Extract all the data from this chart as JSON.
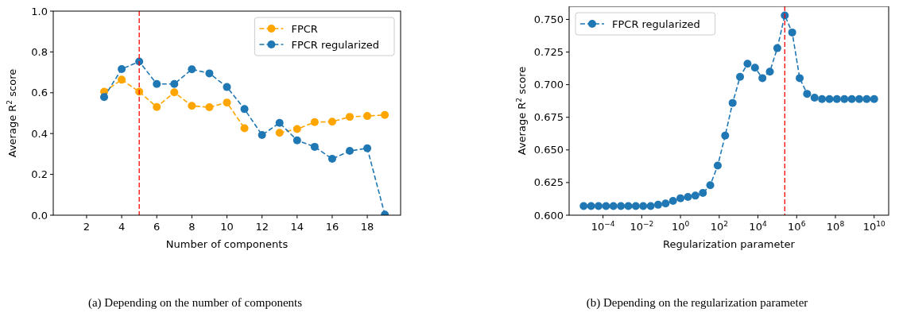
{
  "chart_data": [
    {
      "type": "line",
      "xlabel": "Number of components",
      "ylabel": "Average R$^{2}$ score",
      "annotations": [
        "(a)  Depending on the number of components"
      ],
      "x": [
        3,
        4,
        5,
        6,
        7,
        8,
        9,
        10,
        11,
        12,
        13,
        14,
        15,
        16,
        17,
        18,
        19
      ],
      "series": [
        {
          "name": "FPCR",
          "color": "#ffa500",
          "values": [
            0.605,
            0.664,
            0.605,
            0.53,
            0.602,
            0.536,
            0.529,
            0.552,
            0.426,
            null,
            0.404,
            0.422,
            0.456,
            0.458,
            0.482,
            0.486,
            0.491
          ]
        },
        {
          "name": "FPCR regularized",
          "color": "#1f77b4",
          "values": [
            0.579,
            0.716,
            0.753,
            0.643,
            0.643,
            0.715,
            0.695,
            0.628,
            0.52,
            0.393,
            0.452,
            0.367,
            0.335,
            0.276,
            0.315,
            0.328,
            0.003
          ]
        }
      ],
      "xlim": [
        0.1,
        19.9
      ],
      "ylim": [
        0,
        1
      ],
      "xticks": [
        2,
        4,
        6,
        8,
        10,
        12,
        14,
        16,
        18
      ],
      "yticks": [
        {
          "value": 0,
          "label": "0.0"
        },
        {
          "value": 0.2,
          "label": "0.2"
        },
        {
          "value": 0.4,
          "label": "0.4"
        },
        {
          "value": 0.6,
          "label": "0.6"
        },
        {
          "value": 0.8,
          "label": "0.8"
        },
        {
          "value": 1,
          "label": "1.0"
        }
      ],
      "ref_lines": [
        {
          "axis": "x",
          "value": 5,
          "label": null,
          "color": "#ff0000",
          "line_style": "dashed"
        }
      ],
      "legend": "top right",
      "marker": "circle",
      "line_style": "dashed"
    },
    {
      "type": "line",
      "xlabel": "Regularization parameter",
      "ylabel": "Average R$^{2}$ score",
      "annotations": [
        "(b)  Depending on the regularization parameter"
      ],
      "log": "x",
      "x": [
        1e-05,
        2.43e-05,
        5.87e-05,
        0.000143,
        0.000345,
        0.000838,
        0.00203,
        0.00492,
        0.0119,
        0.029,
        0.0702,
        0.17,
        0.412,
        1,
        2.43,
        5.87,
        14.3,
        34.5,
        83.8,
        203,
        492,
        1190,
        2900,
        7020,
        17000,
        41200,
        100000,
        243000,
        587000,
        1430000.0,
        3450000.0,
        8380000.0,
        20300000.0,
        49200000.0,
        119000000.0,
        290000000.0,
        702000000.0,
        1700000000.0,
        4120000000.0,
        10000000000.0
      ],
      "series": [
        {
          "name": "FPCR regularized",
          "color": "#1f77b4",
          "values": [
            0.607,
            0.607,
            0.607,
            0.607,
            0.607,
            0.607,
            0.607,
            0.607,
            0.607,
            0.607,
            0.608,
            0.609,
            0.611,
            0.613,
            0.614,
            0.615,
            0.617,
            0.623,
            0.638,
            0.661,
            0.686,
            0.706,
            0.716,
            0.713,
            0.705,
            0.71,
            0.728,
            0.753,
            0.74,
            0.705,
            0.693,
            0.69,
            0.689,
            0.689,
            0.689,
            0.689,
            0.689,
            0.689,
            0.689,
            0.689
          ]
        }
      ],
      "xlim": [
        1.78e-06,
        56200000000.0
      ],
      "ylim": [
        0.6,
        0.76
      ],
      "xticks": [
        {
          "value": 0.0001,
          "label": "10$^{−4}$"
        },
        {
          "value": 0.01,
          "label": "10$^{−2}$"
        },
        {
          "value": 1,
          "label": "10$^{0}$"
        },
        {
          "value": 100,
          "label": "10$^{2}$"
        },
        {
          "value": 10000,
          "label": "10$^{4}$"
        },
        {
          "value": 1000000.0,
          "label": "10$^{6}$"
        },
        {
          "value": 100000000.0,
          "label": "10$^{8}$"
        },
        {
          "value": 10000000000.0,
          "label": "10$^{10}$"
        }
      ],
      "yticks": [
        {
          "value": 0.6,
          "label": "0.600"
        },
        {
          "value": 0.625,
          "label": "0.625"
        },
        {
          "value": 0.65,
          "label": "0.650"
        },
        {
          "value": 0.675,
          "label": "0.675"
        },
        {
          "value": 0.7,
          "label": "0.700"
        },
        {
          "value": 0.725,
          "label": "0.725"
        },
        {
          "value": 0.75,
          "label": "0.750"
        }
      ],
      "ref_lines": [
        {
          "axis": "x",
          "value": 243000,
          "label": null,
          "color": "#ff0000",
          "line_style": "dashed"
        }
      ],
      "legend": "top left",
      "marker": "circle",
      "line_style": "dashed"
    }
  ]
}
